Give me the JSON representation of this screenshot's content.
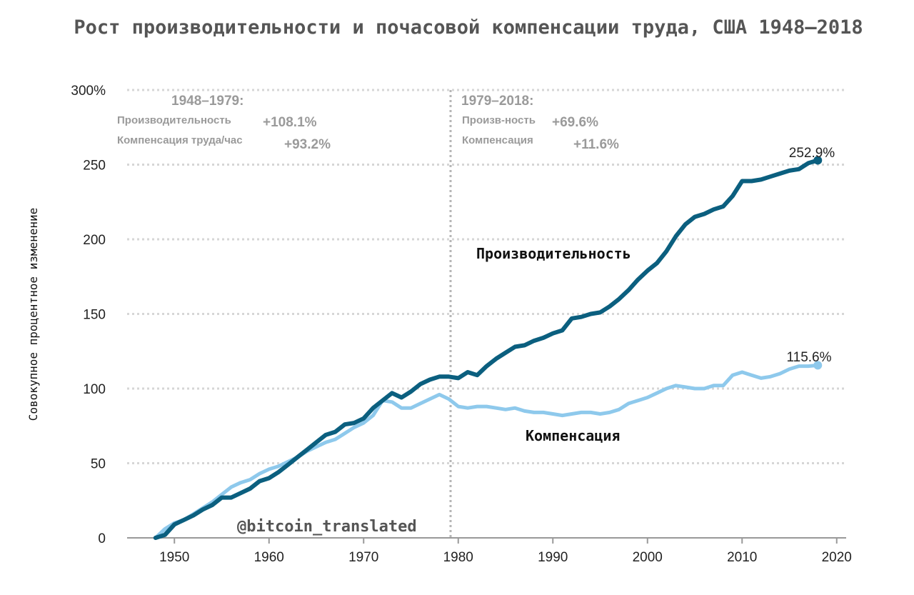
{
  "chart_data": {
    "type": "line",
    "title": "Рост производительности и почасовой компенсации труда, США 1948–2018",
    "ylabel": "Совокупное процентное изменение",
    "ylim": [
      0,
      300
    ],
    "xlim": [
      1945,
      2021
    ],
    "y_ticks": [
      "0",
      "50",
      "100",
      "150",
      "200",
      "250",
      "300%"
    ],
    "x_ticks": [
      "1950",
      "1960",
      "1970",
      "1980",
      "1990",
      "2000",
      "2010",
      "2020"
    ],
    "grid": "horizontal dotted",
    "divider_year": 1979,
    "annotations": {
      "left": {
        "title": "1948–1979:",
        "productivity_label": "Производительность",
        "productivity_value": "+108.1%",
        "compensation_label": "Компенсация труда/час",
        "compensation_value": "+93.2%"
      },
      "right": {
        "title": "1979–2018:",
        "productivity_label": "Произв-ность",
        "productivity_value": "+69.6%",
        "compensation_label": "Компенсация",
        "compensation_value": "+11.6%"
      }
    },
    "series": [
      {
        "name": "Производительность",
        "color": "#0b5f7f",
        "end_label": "252.9%",
        "x": [
          1948,
          1949,
          1950,
          1951,
          1952,
          1953,
          1954,
          1955,
          1956,
          1957,
          1958,
          1959,
          1960,
          1961,
          1962,
          1963,
          1964,
          1965,
          1966,
          1967,
          1968,
          1969,
          1970,
          1971,
          1972,
          1973,
          1974,
          1975,
          1976,
          1977,
          1978,
          1979,
          1980,
          1981,
          1982,
          1983,
          1984,
          1985,
          1986,
          1987,
          1988,
          1989,
          1990,
          1991,
          1992,
          1993,
          1994,
          1995,
          1996,
          1997,
          1998,
          1999,
          2000,
          2001,
          2002,
          2003,
          2004,
          2005,
          2006,
          2007,
          2008,
          2009,
          2010,
          2011,
          2012,
          2013,
          2014,
          2015,
          2016,
          2017,
          2018
        ],
        "values": [
          0,
          2,
          9,
          12,
          15,
          19,
          22,
          27,
          27,
          30,
          33,
          38,
          40,
          44,
          49,
          54,
          59,
          64,
          69,
          71,
          76,
          77,
          80,
          87,
          92,
          97,
          94,
          98,
          103,
          106,
          108,
          108,
          107,
          111,
          109,
          115,
          120,
          124,
          128,
          129,
          132,
          134,
          137,
          139,
          147,
          148,
          150,
          151,
          155,
          160,
          166,
          173,
          179,
          184,
          192,
          202,
          210,
          215,
          217,
          220,
          222,
          229,
          239,
          239,
          240,
          242,
          244,
          246,
          247,
          251,
          252.9
        ]
      },
      {
        "name": "Компенсация",
        "color": "#8ec9ec",
        "end_label": "115.6%",
        "x": [
          1948,
          1949,
          1950,
          1951,
          1952,
          1953,
          1954,
          1955,
          1956,
          1957,
          1958,
          1959,
          1960,
          1961,
          1962,
          1963,
          1964,
          1965,
          1966,
          1967,
          1968,
          1969,
          1970,
          1971,
          1972,
          1973,
          1974,
          1975,
          1976,
          1977,
          1978,
          1979,
          1980,
          1981,
          1982,
          1983,
          1984,
          1985,
          1986,
          1987,
          1988,
          1989,
          1990,
          1991,
          1992,
          1993,
          1994,
          1995,
          1996,
          1997,
          1998,
          1999,
          2000,
          2001,
          2002,
          2003,
          2004,
          2005,
          2006,
          2007,
          2008,
          2009,
          2010,
          2011,
          2012,
          2013,
          2014,
          2015,
          2016,
          2017,
          2018
        ],
        "values": [
          0,
          6,
          10,
          12,
          16,
          20,
          24,
          29,
          34,
          37,
          39,
          43,
          46,
          48,
          51,
          54,
          58,
          61,
          64,
          66,
          70,
          74,
          77,
          82,
          92,
          91,
          87,
          87,
          90,
          93,
          96,
          93,
          88,
          87,
          88,
          88,
          87,
          86,
          87,
          85,
          84,
          84,
          83,
          82,
          83,
          84,
          84,
          83,
          84,
          86,
          90,
          92,
          94,
          97,
          100,
          102,
          101,
          100,
          100,
          102,
          102,
          109,
          111,
          109,
          107,
          108,
          110,
          113,
          115,
          115,
          115.6
        ]
      }
    ],
    "watermark": "@bitcoin_translated"
  }
}
